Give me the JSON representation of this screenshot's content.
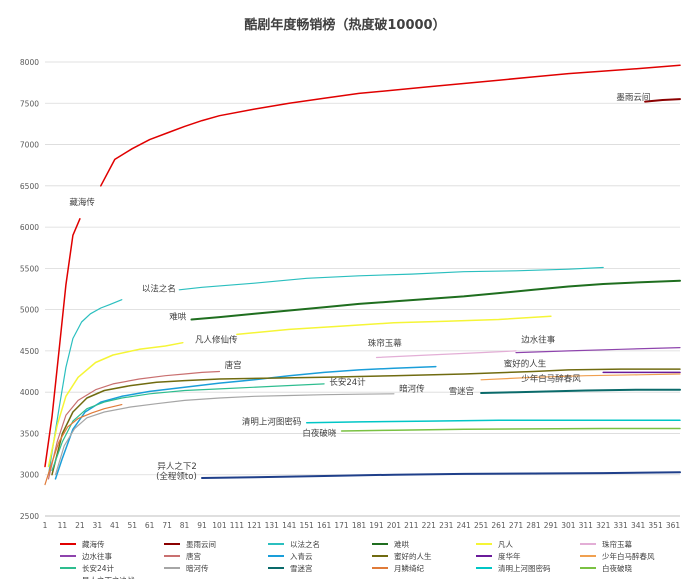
{
  "chart_data": {
    "type": "line",
    "title": "酷剧年度畅销榜（热度破10000）",
    "xlim": [
      1,
      365
    ],
    "ylim": [
      2500,
      8000
    ],
    "x_ticks": [
      1,
      11,
      21,
      31,
      41,
      51,
      61,
      71,
      81,
      91,
      101,
      111,
      121,
      131,
      141,
      151,
      161,
      171,
      181,
      191,
      201,
      211,
      221,
      231,
      241,
      251,
      261,
      271,
      281,
      291,
      301,
      311,
      321,
      331,
      341,
      351,
      361
    ],
    "y_ticks": [
      2500,
      3000,
      3500,
      4000,
      4500,
      5000,
      5500,
      6000,
      6500,
      7000,
      7500,
      8000
    ],
    "grid": "horizontal",
    "legend_position": "bottom",
    "series": [
      {
        "name": "藏海传",
        "color": "#e00000",
        "width": 1.5,
        "points": [
          [
            1,
            3100
          ],
          [
            5,
            3700
          ],
          [
            9,
            4500
          ],
          [
            13,
            5300
          ],
          [
            17,
            5900
          ],
          [
            21,
            6100
          ]
        ]
      },
      {
        "name": "藏海传",
        "color": "#e00000",
        "width": 1.5,
        "points": [
          [
            33,
            6500
          ],
          [
            41,
            6820
          ],
          [
            51,
            6950
          ],
          [
            61,
            7060
          ],
          [
            71,
            7140
          ],
          [
            81,
            7220
          ],
          [
            91,
            7290
          ],
          [
            101,
            7350
          ],
          [
            121,
            7430
          ],
          [
            141,
            7500
          ],
          [
            161,
            7560
          ],
          [
            181,
            7620
          ],
          [
            201,
            7660
          ],
          [
            221,
            7700
          ],
          [
            241,
            7740
          ],
          [
            261,
            7780
          ],
          [
            281,
            7820
          ],
          [
            301,
            7860
          ],
          [
            321,
            7890
          ],
          [
            341,
            7920
          ],
          [
            365,
            7960
          ]
        ]
      },
      {
        "name": "墨雨云间",
        "color": "#8b0000",
        "width": 2,
        "points": [
          [
            345,
            7520
          ],
          [
            355,
            7540
          ],
          [
            365,
            7550
          ]
        ]
      },
      {
        "name": "以法之名",
        "color": "#2bbfbf",
        "width": 1.2,
        "points": [
          [
            3,
            3000
          ],
          [
            6,
            3400
          ],
          [
            9,
            3800
          ],
          [
            13,
            4300
          ],
          [
            17,
            4650
          ],
          [
            22,
            4850
          ],
          [
            27,
            4950
          ],
          [
            33,
            5020
          ],
          [
            38,
            5060
          ],
          [
            45,
            5120
          ]
        ]
      },
      {
        "name": "以法之名",
        "color": "#2bbfbf",
        "width": 1.2,
        "points": [
          [
            78,
            5240
          ],
          [
            91,
            5270
          ],
          [
            121,
            5320
          ],
          [
            151,
            5380
          ],
          [
            181,
            5410
          ],
          [
            211,
            5430
          ],
          [
            241,
            5460
          ],
          [
            271,
            5470
          ],
          [
            301,
            5490
          ],
          [
            321,
            5510
          ]
        ]
      },
      {
        "name": "难哄",
        "color": "#1f6e1f",
        "width": 2,
        "points": [
          [
            85,
            4880
          ],
          [
            101,
            4910
          ],
          [
            121,
            4950
          ],
          [
            141,
            4990
          ],
          [
            161,
            5030
          ],
          [
            181,
            5070
          ],
          [
            201,
            5100
          ],
          [
            221,
            5130
          ],
          [
            241,
            5160
          ],
          [
            261,
            5200
          ],
          [
            281,
            5240
          ],
          [
            301,
            5280
          ],
          [
            321,
            5310
          ],
          [
            341,
            5330
          ],
          [
            365,
            5350
          ]
        ]
      },
      {
        "name": "凡人",
        "color": "#f5f536",
        "width": 1.5,
        "points": [
          [
            3,
            3100
          ],
          [
            8,
            3600
          ],
          [
            13,
            3950
          ],
          [
            20,
            4180
          ],
          [
            30,
            4360
          ],
          [
            40,
            4450
          ],
          [
            55,
            4520
          ],
          [
            70,
            4560
          ],
          [
            80,
            4600
          ]
        ]
      },
      {
        "name": "凡人",
        "color": "#f5f536",
        "width": 1.5,
        "points": [
          [
            111,
            4700
          ],
          [
            141,
            4760
          ],
          [
            171,
            4800
          ],
          [
            201,
            4840
          ],
          [
            231,
            4860
          ],
          [
            261,
            4880
          ],
          [
            291,
            4920
          ]
        ]
      },
      {
        "name": "珠帘玉幕",
        "color": "#e3aed6",
        "width": 1.2,
        "points": [
          [
            191,
            4420
          ],
          [
            221,
            4450
          ],
          [
            251,
            4480
          ],
          [
            271,
            4500
          ]
        ]
      },
      {
        "name": "边水往事",
        "color": "#8e44ad",
        "width": 1.2,
        "points": [
          [
            271,
            4480
          ],
          [
            301,
            4500
          ],
          [
            331,
            4520
          ],
          [
            365,
            4540
          ]
        ]
      },
      {
        "name": "唐宫",
        "color": "#c97070",
        "width": 1.2,
        "points": [
          [
            3,
            2950
          ],
          [
            8,
            3400
          ],
          [
            13,
            3720
          ],
          [
            20,
            3900
          ],
          [
            30,
            4030
          ],
          [
            40,
            4100
          ],
          [
            55,
            4160
          ],
          [
            70,
            4200
          ],
          [
            81,
            4220
          ],
          [
            91,
            4240
          ],
          [
            101,
            4250
          ]
        ]
      },
      {
        "name": "入青云",
        "color": "#1a9ed9",
        "width": 1.5,
        "points": [
          [
            7,
            2950
          ],
          [
            11,
            3200
          ],
          [
            17,
            3550
          ],
          [
            24,
            3760
          ],
          [
            33,
            3880
          ],
          [
            45,
            3950
          ],
          [
            61,
            4010
          ],
          [
            81,
            4060
          ],
          [
            101,
            4110
          ],
          [
            121,
            4150
          ],
          [
            141,
            4200
          ],
          [
            161,
            4240
          ],
          [
            181,
            4270
          ],
          [
            201,
            4290
          ],
          [
            225,
            4310
          ]
        ]
      },
      {
        "name": "蜜好的人生",
        "color": "#706b10",
        "width": 1.5,
        "points": [
          [
            5,
            3000
          ],
          [
            11,
            3500
          ],
          [
            17,
            3760
          ],
          [
            25,
            3930
          ],
          [
            35,
            4020
          ],
          [
            50,
            4080
          ],
          [
            65,
            4120
          ],
          [
            81,
            4140
          ],
          [
            101,
            4160
          ],
          [
            131,
            4170
          ],
          [
            161,
            4180
          ],
          [
            201,
            4200
          ],
          [
            241,
            4220
          ],
          [
            281,
            4250
          ],
          [
            301,
            4270
          ],
          [
            331,
            4280
          ],
          [
            365,
            4280
          ]
        ]
      },
      {
        "name": "度华年",
        "color": "#6a1b9a",
        "width": 1.5,
        "points": [
          [
            321,
            4240
          ],
          [
            341,
            4240
          ],
          [
            365,
            4240
          ]
        ]
      },
      {
        "name": "少年白马醉春风",
        "color": "#f0a050",
        "width": 1.2,
        "points": [
          [
            251,
            4150
          ],
          [
            281,
            4180
          ],
          [
            311,
            4200
          ],
          [
            341,
            4210
          ],
          [
            365,
            4220
          ]
        ]
      },
      {
        "name": "长安24计",
        "color": "#2ebd8f",
        "width": 1.2,
        "points": [
          [
            5,
            3050
          ],
          [
            11,
            3400
          ],
          [
            17,
            3650
          ],
          [
            25,
            3800
          ],
          [
            35,
            3880
          ],
          [
            45,
            3930
          ],
          [
            61,
            3980
          ],
          [
            81,
            4020
          ],
          [
            101,
            4040
          ],
          [
            131,
            4070
          ],
          [
            161,
            4100
          ]
        ]
      },
      {
        "name": "暗河传",
        "color": "#a6a6a6",
        "width": 1.2,
        "points": [
          [
            7,
            3000
          ],
          [
            12,
            3350
          ],
          [
            18,
            3560
          ],
          [
            25,
            3690
          ],
          [
            35,
            3760
          ],
          [
            50,
            3820
          ],
          [
            65,
            3860
          ],
          [
            81,
            3900
          ],
          [
            101,
            3930
          ],
          [
            121,
            3950
          ],
          [
            141,
            3960
          ],
          [
            161,
            3970
          ],
          [
            181,
            3975
          ],
          [
            201,
            3980
          ]
        ]
      },
      {
        "name": "雪迷宫",
        "color": "#0a6a6a",
        "width": 2,
        "points": [
          [
            251,
            3990
          ],
          [
            271,
            4000
          ],
          [
            291,
            4010
          ],
          [
            311,
            4020
          ],
          [
            341,
            4030
          ],
          [
            365,
            4030
          ]
        ]
      },
      {
        "name": "月鳞绮纪",
        "color": "#e07b39",
        "width": 1.2,
        "points": [
          [
            1,
            2880
          ],
          [
            5,
            3150
          ],
          [
            9,
            3400
          ],
          [
            14,
            3580
          ],
          [
            20,
            3680
          ],
          [
            28,
            3750
          ],
          [
            35,
            3800
          ],
          [
            45,
            3850
          ]
        ]
      },
      {
        "name": "清明上河图密码",
        "color": "#00c6c6",
        "width": 1.5,
        "points": [
          [
            151,
            3630
          ],
          [
            181,
            3640
          ],
          [
            221,
            3650
          ],
          [
            261,
            3660
          ],
          [
            301,
            3660
          ],
          [
            331,
            3660
          ],
          [
            365,
            3660
          ]
        ]
      },
      {
        "name": "白夜破晓",
        "color": "#7ac142",
        "width": 1.5,
        "points": [
          [
            171,
            3530
          ],
          [
            201,
            3540
          ],
          [
            241,
            3550
          ],
          [
            281,
            3555
          ],
          [
            321,
            3560
          ],
          [
            365,
            3560
          ]
        ]
      },
      {
        "name": "异人之下之决战",
        "color": "#1f3f8a",
        "width": 2,
        "points": [
          [
            91,
            2960
          ],
          [
            121,
            2970
          ],
          [
            161,
            2985
          ],
          [
            201,
            3000
          ],
          [
            241,
            3010
          ],
          [
            281,
            3015
          ],
          [
            321,
            3020
          ],
          [
            365,
            3030
          ]
        ]
      }
    ],
    "annotations": [
      {
        "text": "藏海传",
        "x": 15,
        "y": 6270,
        "anchor": "start"
      },
      {
        "text": "墨雨云间",
        "x": 348,
        "y": 7540,
        "anchor": "end"
      },
      {
        "text": "以法之名",
        "x": 76,
        "y": 5220,
        "anchor": "end"
      },
      {
        "text": "难哄",
        "x": 82,
        "y": 4880,
        "anchor": "end"
      },
      {
        "text": "凡人修仙传",
        "x": 87,
        "y": 4600,
        "anchor": "start"
      },
      {
        "text": "珠帘玉幕",
        "x": 186,
        "y": 4560,
        "anchor": "start"
      },
      {
        "text": "边水往事",
        "x": 274,
        "y": 4600,
        "anchor": "start"
      },
      {
        "text": "唐宫",
        "x": 104,
        "y": 4290,
        "anchor": "start"
      },
      {
        "text": "蜜好的人生",
        "x": 264,
        "y": 4310,
        "anchor": "start"
      },
      {
        "text": "少年白马醉春风",
        "x": 274,
        "y": 4130,
        "anchor": "start"
      },
      {
        "text": "长安24计",
        "x": 164,
        "y": 4090,
        "anchor": "start"
      },
      {
        "text": "暗河传",
        "x": 204,
        "y": 4010,
        "anchor": "start"
      },
      {
        "text": "雪迷宫",
        "x": 247,
        "y": 3980,
        "anchor": "end"
      },
      {
        "text": "清明上河图密码",
        "x": 148,
        "y": 3610,
        "anchor": "end"
      },
      {
        "text": "白夜破晓",
        "x": 168,
        "y": 3470,
        "anchor": "end"
      },
      {
        "text": "异人之下2",
        "x": 88,
        "y": 3070,
        "anchor": "end"
      },
      {
        "text": "(全程领to)",
        "x": 88,
        "y": 2950,
        "anchor": "end"
      }
    ],
    "legend": [
      {
        "name": "藏海传",
        "color": "#e00000"
      },
      {
        "name": "墨雨云间",
        "color": "#8b0000"
      },
      {
        "name": "以法之名",
        "color": "#2bbfbf"
      },
      {
        "name": "难哄",
        "color": "#1f6e1f"
      },
      {
        "name": "凡人",
        "color": "#f5f536"
      },
      {
        "name": "珠帘玉幕",
        "color": "#e3aed6"
      },
      {
        "name": "边水往事",
        "color": "#8e44ad"
      },
      {
        "name": "唐宫",
        "color": "#c97070"
      },
      {
        "name": "入青云",
        "color": "#1a9ed9"
      },
      {
        "name": "蜜好的人生",
        "color": "#706b10"
      },
      {
        "name": "度华年",
        "color": "#6a1b9a"
      },
      {
        "name": "少年白马醉春风",
        "color": "#f0a050"
      },
      {
        "name": "长安24计",
        "color": "#2ebd8f"
      },
      {
        "name": "暗河传",
        "color": "#a6a6a6"
      },
      {
        "name": "雪迷宫",
        "color": "#0a6a6a"
      },
      {
        "name": "月鳞绮纪",
        "color": "#e07b39"
      },
      {
        "name": "清明上河图密码",
        "color": "#00c6c6"
      },
      {
        "name": "白夜破晓",
        "color": "#7ac142"
      },
      {
        "name": "异人之下之决战",
        "color": "#1f3f8a"
      }
    ]
  }
}
